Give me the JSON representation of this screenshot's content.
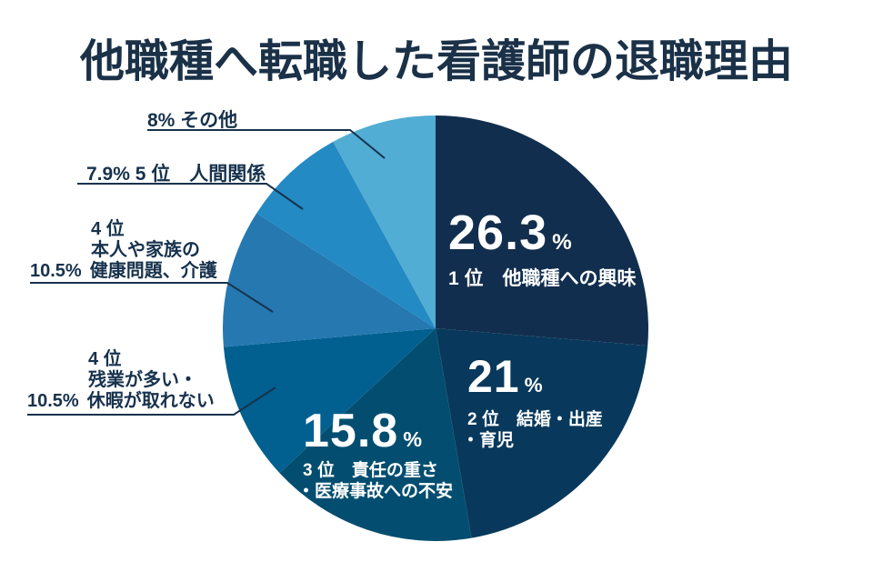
{
  "chart_data": {
    "type": "pie",
    "title": "他職種へ転職した看護師の退職理由",
    "unit": "%",
    "start_angle_deg": 0,
    "direction": "clockwise",
    "legend_position": "none",
    "segments": [
      {
        "rank": "1位",
        "label": "他職種への興味",
        "value": 26.3,
        "color": "#122e4e",
        "label_placement": "inside"
      },
      {
        "rank": "2位",
        "label": "結婚・出産・育児",
        "value": 21,
        "color": "#08395c",
        "label_placement": "inside"
      },
      {
        "rank": "3位",
        "label": "責任の重さ・医療事故への不安",
        "value": 15.8,
        "color": "#034e70",
        "label_placement": "inside"
      },
      {
        "rank": "4位",
        "label": "残業が多い・休暇が取れない",
        "value": 10.5,
        "color": "#016090",
        "label_placement": "callout"
      },
      {
        "rank": "4位",
        "label": "本人や家族の健康問題、介護",
        "value": 10.5,
        "color": "#2678b1",
        "label_placement": "callout"
      },
      {
        "rank": "5位",
        "label": "人間関係",
        "value": 7.9,
        "color": "#238ac3",
        "label_placement": "callout"
      },
      {
        "rank": "",
        "label": "その他",
        "value": 8,
        "color": "#51add3",
        "label_placement": "callout"
      }
    ]
  },
  "inside_labels": {
    "first": {
      "value": "26.3",
      "unit": "%",
      "caption_line1": "1 位　他職種への興味"
    },
    "second": {
      "value": "21",
      "unit": "%",
      "caption_line1": "2 位　結婚・出産",
      "caption_line2": "・育児"
    },
    "third": {
      "value": "15.8",
      "unit": "%",
      "caption_line1": "3 位　責任の重さ",
      "caption_line2": "・医療事故への不安"
    }
  },
  "callouts": {
    "other": {
      "full_text": "8% その他"
    },
    "relationships": {
      "full_text": "7.9% 5 位　人間関係"
    },
    "health": {
      "rank_line": "4 位",
      "desc_line": "本人や家族の",
      "pct": "10.5%",
      "last_line": "健康問題、介護"
    },
    "overtime": {
      "rank_line": "4 位",
      "desc_line": "残業が多い・",
      "pct": "10.5%",
      "last_line": "休暇が取れない"
    }
  },
  "colors": {
    "background": "#ffffff",
    "text_navy": "#17324d",
    "title_navy": "#1a3148",
    "leader_line": "#17324d",
    "inside_text": "#ffffff"
  }
}
